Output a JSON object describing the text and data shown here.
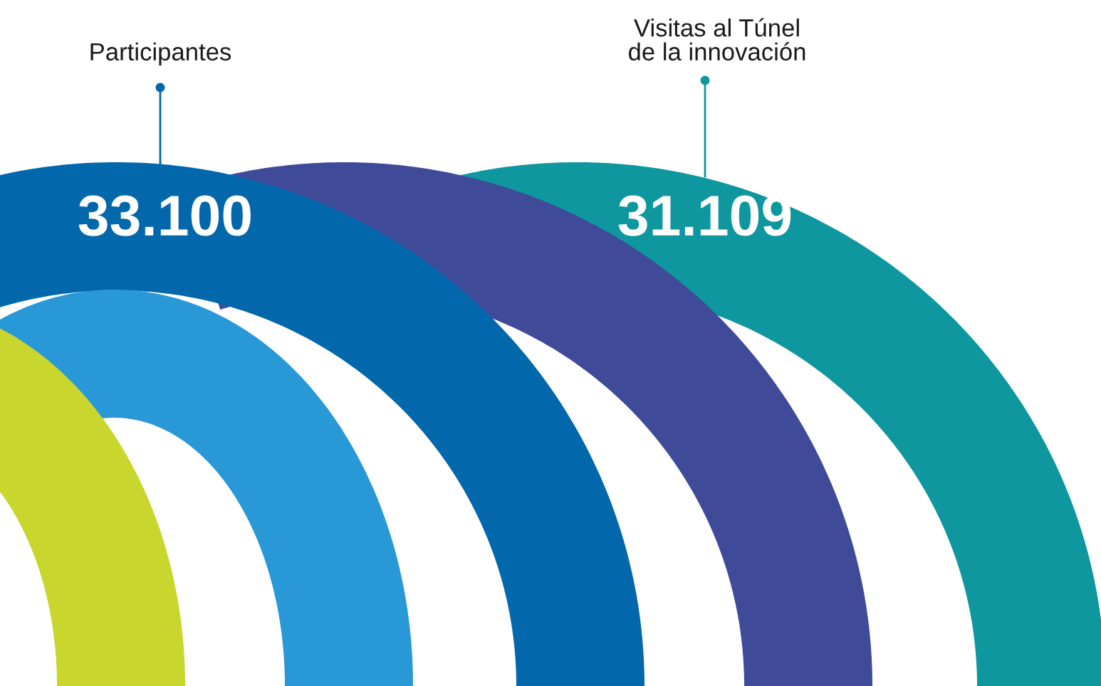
{
  "chart_data": {
    "type": "other",
    "categories": [
      "Participantes",
      "Visitas al Túnel\nde la innovación"
    ],
    "values": [
      33100,
      31109
    ],
    "value_labels": [
      "33.100",
      "31.109"
    ],
    "colors": [
      "#0268ab",
      "#0e979f"
    ]
  }
}
